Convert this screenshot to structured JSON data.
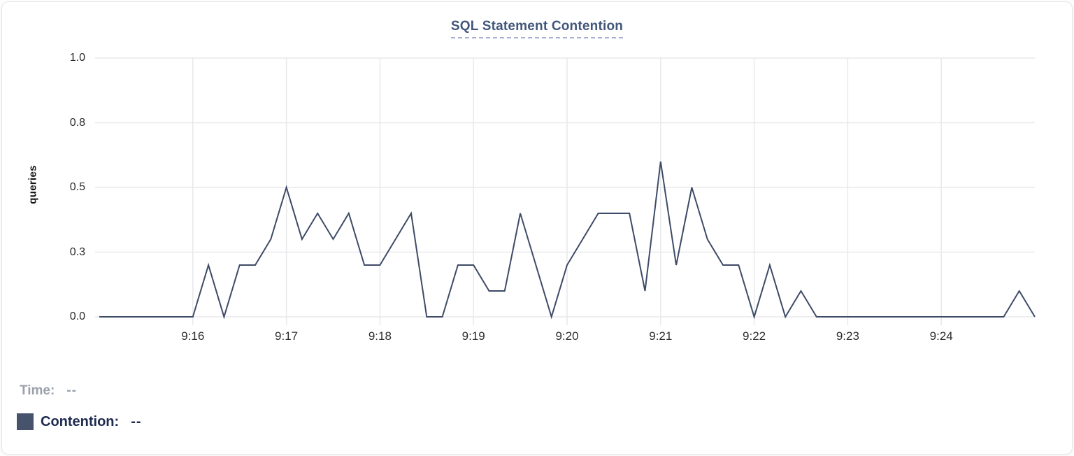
{
  "title": "SQL Statement Contention",
  "chart_data": {
    "type": "line",
    "title": "SQL Statement Contention",
    "xlabel": "",
    "ylabel": "queries",
    "ylim": [
      0,
      1.0
    ],
    "grid": true,
    "legend_position": "bottom-left",
    "y_ticks": [
      {
        "value": 0.0,
        "label": "0.0"
      },
      {
        "value": 0.25,
        "label": "0.3"
      },
      {
        "value": 0.5,
        "label": "0.5"
      },
      {
        "value": 0.75,
        "label": "0.8"
      },
      {
        "value": 1.0,
        "label": "1.0"
      }
    ],
    "x_ticks": [
      "9:16",
      "9:17",
      "9:18",
      "9:19",
      "9:20",
      "9:21",
      "9:22",
      "9:23",
      "9:24"
    ],
    "x_start": "9:15:00",
    "x_end": "9:25:00",
    "x_interval_seconds": 10,
    "series": [
      {
        "name": "Contention",
        "color": "#3e4b66",
        "values": [
          0,
          0,
          0,
          0,
          0,
          0,
          0,
          0.2,
          0,
          0.2,
          0.2,
          0.3,
          0.5,
          0.3,
          0.4,
          0.3,
          0.4,
          0.2,
          0.2,
          0.3,
          0.4,
          0,
          0,
          0.2,
          0.2,
          0.1,
          0.1,
          0.4,
          0.2,
          0,
          0.2,
          0.3,
          0.4,
          0.4,
          0.4,
          0.1,
          0.6,
          0.2,
          0.5,
          0.3,
          0.2,
          0.2,
          0,
          0.2,
          0,
          0.1,
          0,
          0,
          0,
          0,
          0,
          0,
          0,
          0,
          0,
          0,
          0,
          0,
          0,
          0.1,
          0
        ]
      }
    ]
  },
  "legend": {
    "time_label": "Time:",
    "time_value": "--",
    "contention_label": "Contention:",
    "contention_value": "--",
    "swatch_color": "#47536b"
  },
  "colors": {
    "series_line": "#3e4b66",
    "title": "#41567a",
    "title_underline": "#a9b2d6",
    "gridline": "#e8e9ec",
    "tick_label": "#2d2d2d",
    "time_legend": "#9ba1ab",
    "contention_legend": "#1e2b4e"
  }
}
